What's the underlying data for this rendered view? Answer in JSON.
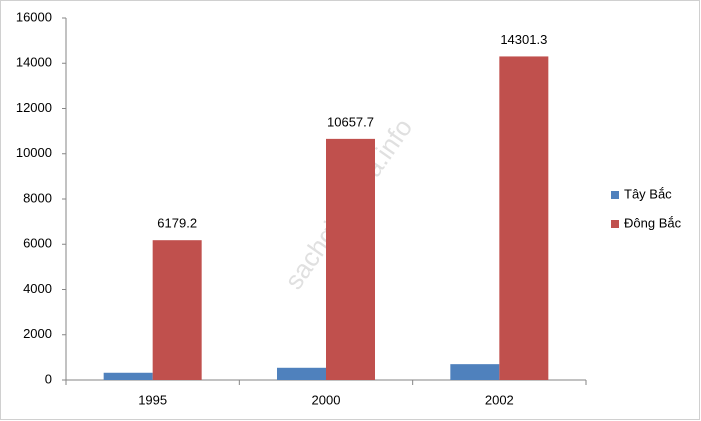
{
  "chart_data": {
    "type": "bar",
    "categories": [
      "1995",
      "2000",
      "2002"
    ],
    "series": [
      {
        "name": "Tây Bắc",
        "color": "#4f81bd",
        "values": [
          320,
          540,
          700
        ],
        "show_labels": false
      },
      {
        "name": "Đông Bắc",
        "color": "#c0504d",
        "values": [
          6179.2,
          10657.7,
          14301.3
        ],
        "show_labels": true
      }
    ],
    "ylim": [
      0,
      16000
    ],
    "yticks": [
      0,
      2000,
      4000,
      6000,
      8000,
      10000,
      12000,
      14000,
      16000
    ],
    "grid": false,
    "legend": "right",
    "watermark": "sachgiaikhoa.info"
  }
}
